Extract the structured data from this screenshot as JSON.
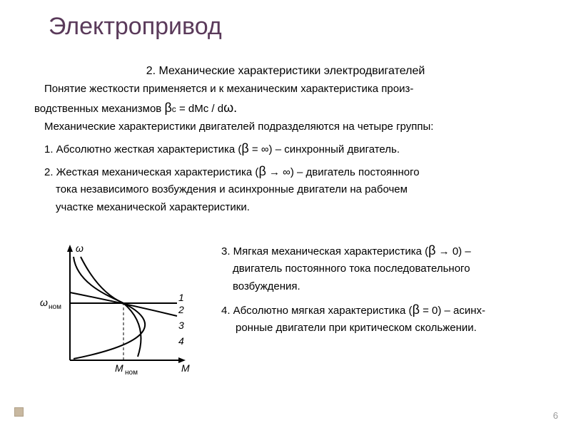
{
  "title": "Электропривод",
  "subtitle": "2. Механические характеристики электродвигателей",
  "intro1": "Понятие жесткости применяется и к механическим характеристика произ-",
  "intro2_a": "водственных механизмов ",
  "intro2_b": "β",
  "intro2_c": "с",
  "intro2_d": " = dMс / d",
  "intro2_e": "ω.",
  "groups_line": "Механические характеристики двигателей подразделяются на четыре группы:",
  "item1_a": "1. Абсолютно жесткая характеристика (",
  "item1_b": "β",
  "item1_c": " = ∞) – синхронный двигатель.",
  "item2_a": "2. Жесткая механическая характеристика (",
  "item2_b": "β",
  "item2_c": " → ∞) – двигатель постоянного",
  "item2_d": "тока независимого возбуждения и асинхронные двигатели на рабочем",
  "item2_e": "участке механической характеристики.",
  "item3_a": "3. Мягкая механическая характеристика (",
  "item3_b": "β",
  "item3_c": " → 0) –",
  "item3_d": "двигатель постоянного тока последовательного",
  "item3_e": "возбуждения.",
  "item4_a": "4. Абсолютно мягкая характеристика (",
  "item4_b": "β",
  "item4_c": " = 0) – асинх-",
  "item4_d": "ронные двигатели при критическом скольжении.",
  "page_number": "6",
  "chart": {
    "axis_y_label": "ω",
    "axis_x_label": "M",
    "y_tick_label": "ω",
    "y_tick_sub": "ном",
    "x_tick_label": "M",
    "x_tick_sub": "ном",
    "curve_labels": [
      "1",
      "2",
      "3",
      "4"
    ],
    "stroke": "#000000",
    "stroke_width": 2,
    "font_size": 14
  }
}
